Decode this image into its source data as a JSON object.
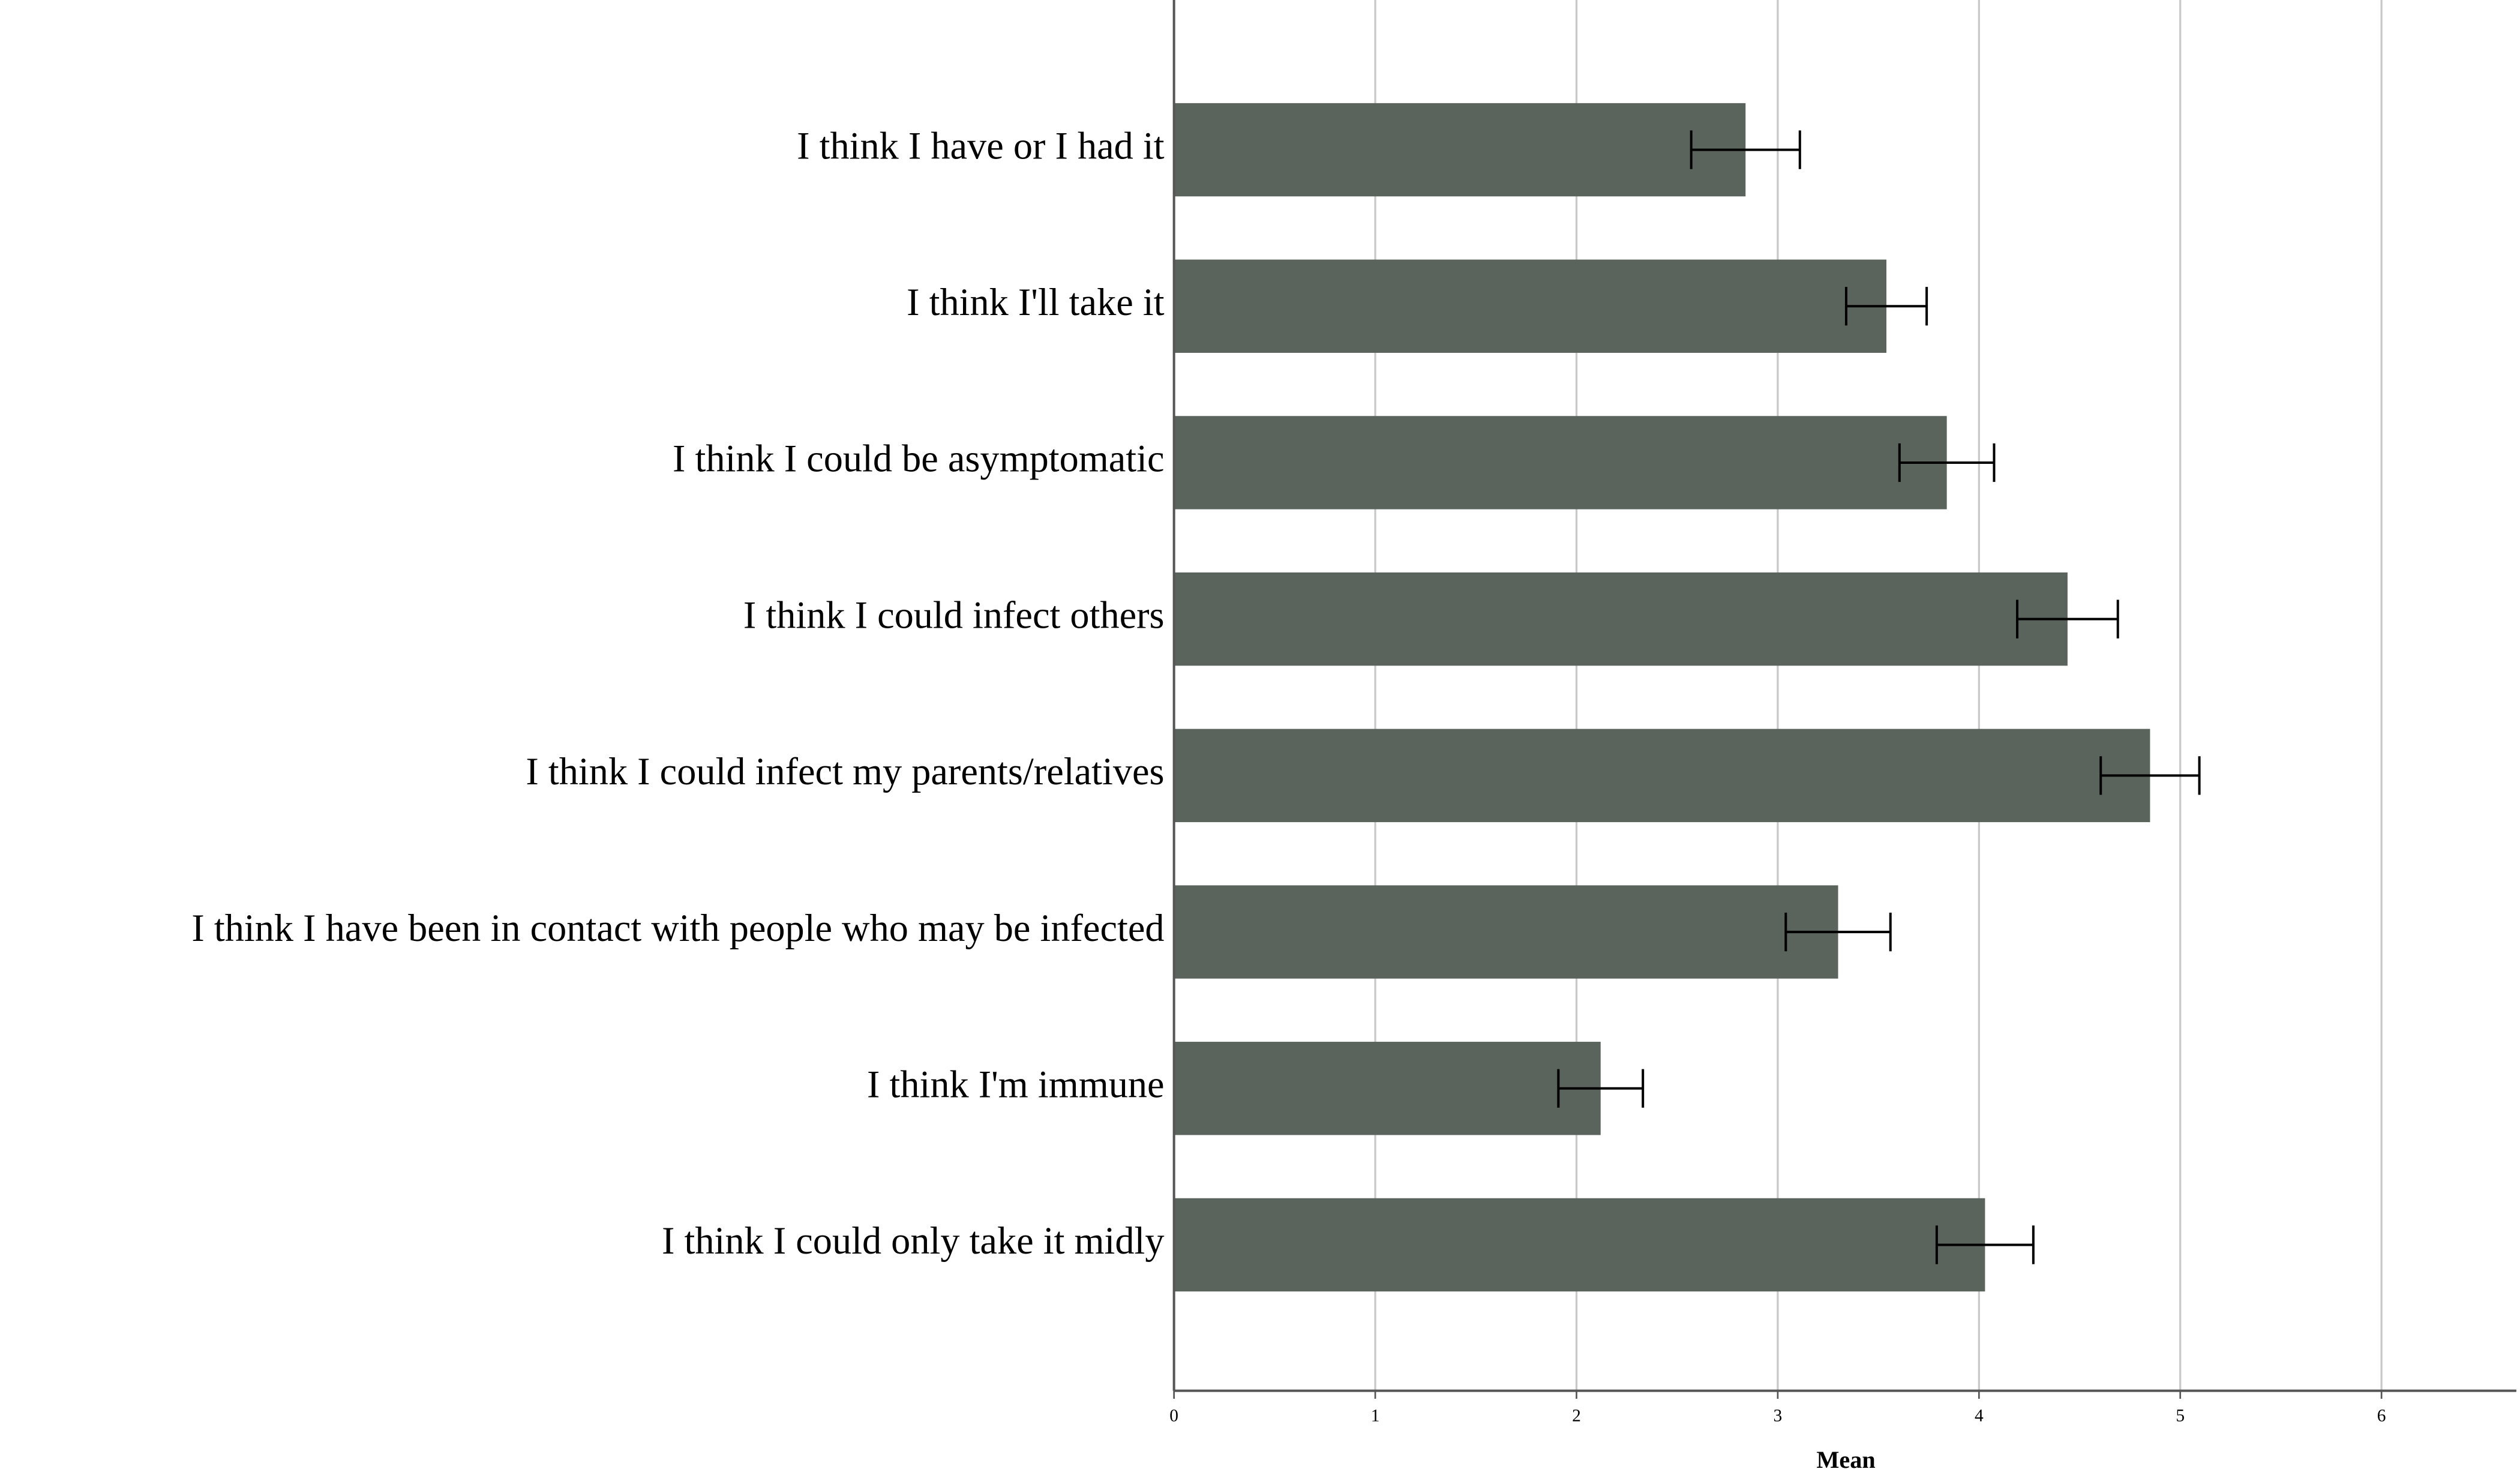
{
  "chart_data": {
    "type": "bar",
    "orientation": "horizontal",
    "categories": [
      "I think I have or I had it",
      "I think I'll take it",
      "I think I could be asymptomatic",
      "I think I could infect others",
      "I think I could infect my parents/relatives",
      "I think I have been in contact with people who may be infected",
      "I think I'm immune",
      "I think I could only take it midly"
    ],
    "values": [
      2.84,
      3.54,
      3.84,
      4.44,
      4.85,
      3.3,
      2.12,
      4.03
    ],
    "errors": [
      0.27,
      0.2,
      0.235,
      0.25,
      0.245,
      0.26,
      0.21,
      0.24
    ],
    "color": "#5a635c",
    "x_label": "Mean",
    "xlim": [
      0,
      6.67
    ],
    "xticks": [
      0,
      1,
      2,
      3,
      4,
      5,
      6
    ],
    "grid": true
  }
}
